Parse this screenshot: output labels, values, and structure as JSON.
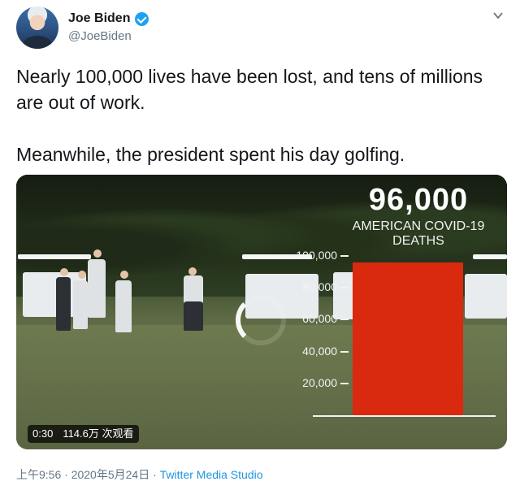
{
  "author": {
    "display_name": "Joe Biden",
    "handle": "@JoeBiden"
  },
  "icons": {
    "avatar": "profile-photo",
    "verified": "verified-badge-icon",
    "menu": "chevron-down-icon",
    "loading": "loading-spinner-icon"
  },
  "tweet": {
    "line1": "Nearly 100,000 lives have been lost, and tens of millions are out of work.",
    "line2": "Meanwhile, the president spent his day golfing."
  },
  "media": {
    "headline_number": "96,000",
    "headline_label": "AMERICAN COVID-19 DEATHS",
    "video_duration": "0:30",
    "view_count": "114.6万 次观看"
  },
  "chart_data": {
    "type": "bar",
    "categories": [
      ""
    ],
    "values": [
      96000
    ],
    "title": "96,000",
    "subtitle": "AMERICAN COVID-19 DEATHS",
    "ylim": [
      0,
      100000
    ],
    "yticks": [
      "20,000",
      "40,000",
      "60,000",
      "80,000",
      "100,000"
    ],
    "bar_color": "#d9290f"
  },
  "footer": {
    "time": "上午9:56",
    "separator": "·",
    "date": "2020年5月24日",
    "source": "Twitter Media Studio"
  },
  "colors": {
    "link": "#1b95e0",
    "verified": "#1da1f2",
    "bar": "#d9290f"
  }
}
